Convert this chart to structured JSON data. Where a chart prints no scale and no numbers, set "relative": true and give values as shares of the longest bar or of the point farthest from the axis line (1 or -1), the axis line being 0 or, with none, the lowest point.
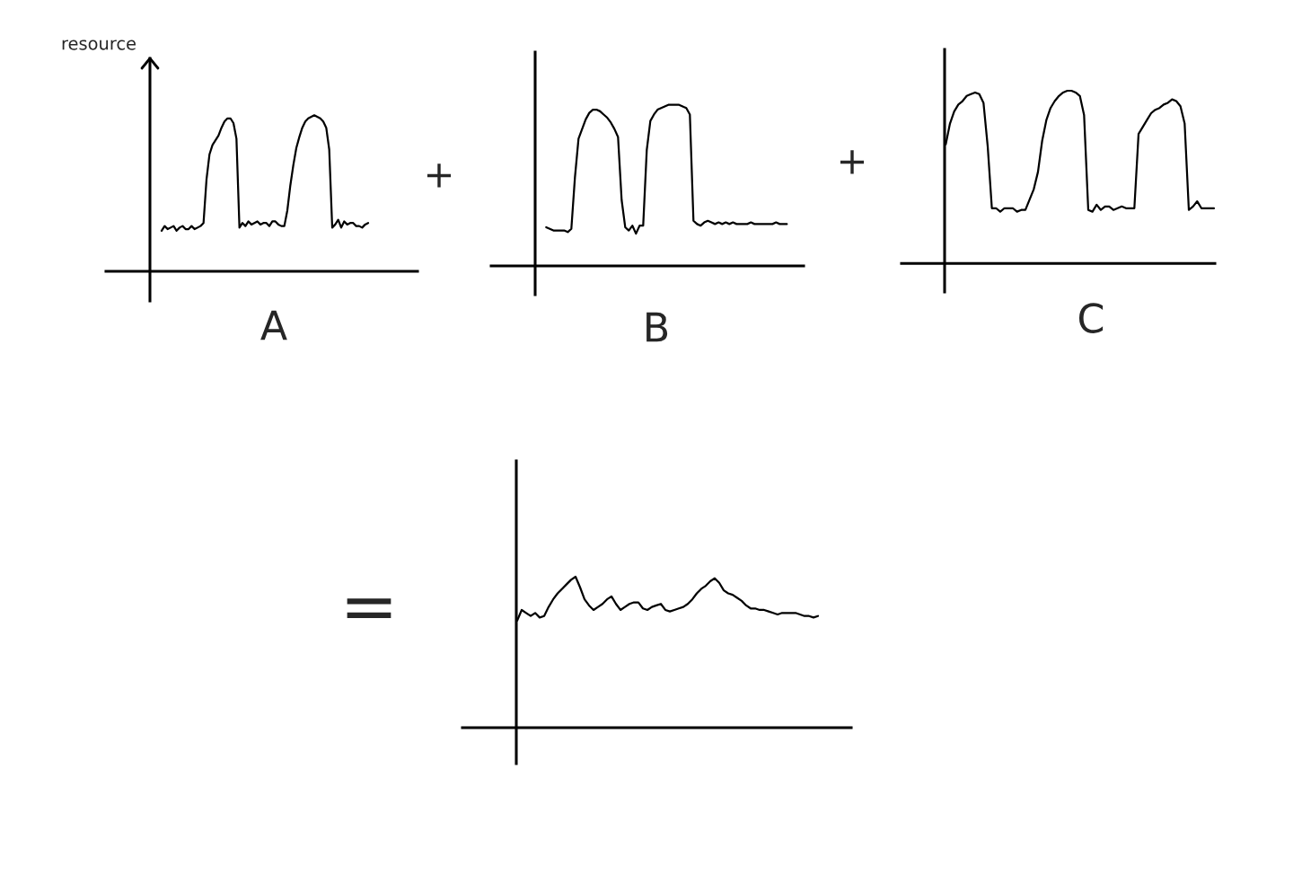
{
  "chart_data": [
    {
      "type": "line",
      "relative": true,
      "ylabel": "resource",
      "xlabel": "A",
      "color": "#000000",
      "categories": [
        null,
        null,
        null,
        null,
        null,
        null,
        null,
        null,
        null,
        null,
        null,
        null,
        null,
        null,
        null,
        null,
        null,
        null,
        null,
        null,
        null,
        null,
        null,
        null,
        null,
        null,
        null,
        null,
        null,
        null,
        null,
        null,
        null,
        null,
        null,
        null,
        null,
        null,
        null,
        null,
        null,
        null,
        null,
        null,
        null,
        null,
        null,
        null,
        null,
        null,
        null,
        null,
        null,
        null,
        null,
        null,
        null,
        null,
        null,
        null,
        null,
        null,
        null,
        null,
        null,
        null,
        null,
        null,
        null,
        null
      ],
      "values": [
        0.26,
        0.29,
        0.27,
        0.28,
        0.29,
        0.26,
        0.28,
        0.29,
        0.27,
        0.27,
        0.29,
        0.27,
        0.28,
        0.29,
        0.31,
        0.59,
        0.75,
        0.81,
        0.84,
        0.87,
        0.92,
        0.96,
        0.98,
        0.98,
        0.95,
        0.85,
        0.28,
        0.31,
        0.29,
        0.32,
        0.3,
        0.31,
        0.32,
        0.3,
        0.31,
        0.31,
        0.29,
        0.32,
        0.32,
        0.3,
        0.29,
        0.29,
        0.39,
        0.55,
        0.68,
        0.79,
        0.86,
        0.92,
        0.96,
        0.98,
        0.99,
        1.0,
        0.99,
        0.98,
        0.96,
        0.92,
        0.78,
        0.28,
        0.3,
        0.33,
        0.28,
        0.32,
        0.3,
        0.31,
        0.31,
        0.29,
        0.29,
        0.28,
        0.3,
        0.31
      ]
    },
    {
      "type": "line",
      "relative": true,
      "xlabel": "B",
      "color": "#000000",
      "annotations": [
        "+"
      ],
      "categories": [
        null,
        null,
        null,
        null,
        null,
        null,
        null,
        null,
        null,
        null,
        null,
        null,
        null,
        null,
        null,
        null,
        null,
        null,
        null,
        null,
        null,
        null,
        null,
        null,
        null,
        null,
        null,
        null,
        null,
        null,
        null,
        null,
        null,
        null,
        null,
        null,
        null,
        null,
        null,
        null,
        null,
        null,
        null,
        null,
        null,
        null,
        null,
        null,
        null,
        null,
        null,
        null,
        null,
        null,
        null,
        null,
        null,
        null,
        null,
        null,
        null,
        null,
        null,
        null,
        null,
        null,
        null,
        null
      ],
      "values": [
        0.24,
        0.23,
        0.22,
        0.22,
        0.22,
        0.22,
        0.21,
        0.23,
        0.55,
        0.79,
        0.85,
        0.91,
        0.95,
        0.97,
        0.97,
        0.96,
        0.94,
        0.92,
        0.89,
        0.85,
        0.8,
        0.41,
        0.24,
        0.22,
        0.25,
        0.2,
        0.25,
        0.25,
        0.72,
        0.9,
        0.94,
        0.97,
        0.98,
        0.99,
        1.0,
        1.0,
        1.0,
        1.0,
        0.99,
        0.98,
        0.94,
        0.28,
        0.26,
        0.25,
        0.27,
        0.28,
        0.27,
        0.26,
        0.27,
        0.26,
        0.27,
        0.26,
        0.27,
        0.26,
        0.26,
        0.26,
        0.26,
        0.27,
        0.26,
        0.26,
        0.26,
        0.26,
        0.26,
        0.26,
        0.27,
        0.26,
        0.26,
        0.26
      ]
    },
    {
      "type": "line",
      "relative": true,
      "xlabel": "C",
      "color": "#000000",
      "annotations": [
        "+"
      ],
      "categories": [
        null,
        null,
        null,
        null,
        null,
        null,
        null,
        null,
        null,
        null,
        null,
        null,
        null,
        null,
        null,
        null,
        null,
        null,
        null,
        null,
        null,
        null,
        null,
        null,
        null,
        null,
        null,
        null,
        null,
        null,
        null,
        null,
        null,
        null,
        null,
        null,
        null,
        null,
        null,
        null,
        null,
        null,
        null,
        null,
        null,
        null,
        null,
        null,
        null,
        null,
        null,
        null,
        null,
        null,
        null,
        null,
        null,
        null,
        null,
        null,
        null,
        null,
        null,
        null,
        null
      ],
      "values": [
        0.69,
        0.81,
        0.88,
        0.92,
        0.94,
        0.97,
        0.98,
        0.99,
        0.98,
        0.93,
        0.68,
        0.32,
        0.32,
        0.3,
        0.32,
        0.32,
        0.32,
        0.3,
        0.31,
        0.31,
        0.37,
        0.43,
        0.53,
        0.71,
        0.83,
        0.9,
        0.94,
        0.97,
        0.99,
        1.0,
        1.0,
        0.99,
        0.97,
        0.86,
        0.31,
        0.3,
        0.34,
        0.31,
        0.33,
        0.33,
        0.31,
        0.32,
        0.33,
        0.32,
        0.32,
        0.32,
        0.75,
        0.79,
        0.83,
        0.87,
        0.89,
        0.9,
        0.92,
        0.93,
        0.95,
        0.94,
        0.91,
        0.81,
        0.31,
        0.33,
        0.36,
        0.32,
        0.32,
        0.32,
        0.32
      ]
    },
    {
      "type": "line",
      "relative": true,
      "color": "#000000",
      "annotations": [
        "="
      ],
      "categories": [
        null,
        null,
        null,
        null,
        null,
        null,
        null,
        null,
        null,
        null,
        null,
        null,
        null,
        null,
        null,
        null,
        null,
        null,
        null,
        null,
        null,
        null,
        null,
        null,
        null,
        null,
        null,
        null,
        null,
        null,
        null,
        null,
        null,
        null,
        null,
        null,
        null,
        null,
        null,
        null,
        null,
        null,
        null,
        null,
        null,
        null,
        null,
        null,
        null,
        null,
        null,
        null,
        null,
        null,
        null,
        null,
        null,
        null,
        null,
        null,
        null,
        null,
        null,
        null,
        null,
        null,
        null,
        null
      ],
      "values": [
        0.71,
        0.78,
        0.76,
        0.74,
        0.76,
        0.73,
        0.74,
        0.8,
        0.85,
        0.89,
        0.92,
        0.95,
        0.98,
        1.0,
        0.93,
        0.85,
        0.81,
        0.78,
        0.8,
        0.82,
        0.85,
        0.87,
        0.82,
        0.78,
        0.8,
        0.82,
        0.83,
        0.83,
        0.79,
        0.78,
        0.8,
        0.81,
        0.82,
        0.78,
        0.77,
        0.78,
        0.79,
        0.8,
        0.82,
        0.85,
        0.89,
        0.92,
        0.94,
        0.97,
        0.99,
        0.96,
        0.91,
        0.89,
        0.88,
        0.86,
        0.84,
        0.81,
        0.79,
        0.79,
        0.78,
        0.78,
        0.77,
        0.76,
        0.75,
        0.76,
        0.76,
        0.76,
        0.76,
        0.75,
        0.74,
        0.74,
        0.73,
        0.74
      ]
    }
  ]
}
